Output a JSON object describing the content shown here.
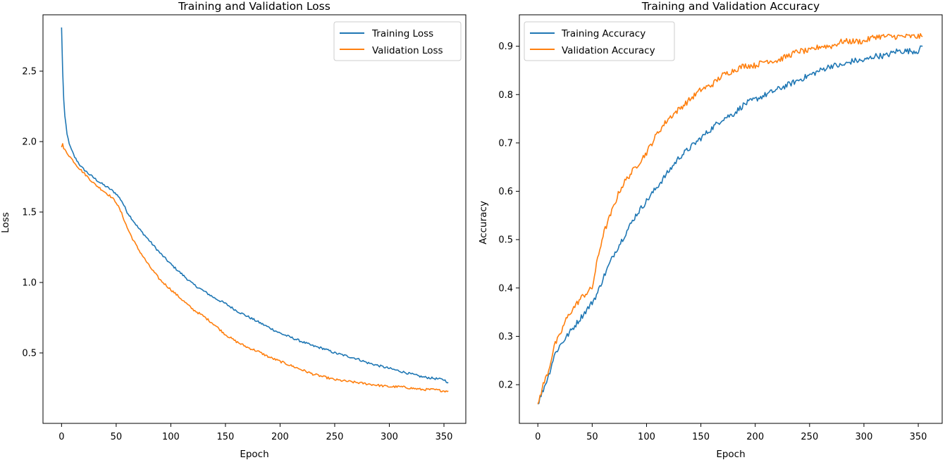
{
  "chart_data": [
    {
      "type": "line",
      "title": "Training and Validation Loss",
      "xlabel": "Epoch",
      "ylabel": "Loss",
      "xlim": [
        -17,
        370
      ],
      "ylim": [
        0.0,
        2.9
      ],
      "xticks": [
        0,
        50,
        100,
        150,
        200,
        250,
        300,
        350
      ],
      "yticks": [
        0.5,
        1.0,
        1.5,
        2.0,
        2.5
      ],
      "xtick_labels": [
        "0",
        "50",
        "100",
        "150",
        "200",
        "250",
        "300",
        "350"
      ],
      "ytick_labels": [
        "0.5",
        "1.0",
        "1.5",
        "2.0",
        "2.5"
      ],
      "legend_position": "top-right",
      "noise": 0.008,
      "series": [
        {
          "name": "Training Loss",
          "color": "#1f77b4",
          "anchors": [
            [
              0,
              2.81
            ],
            [
              1,
              2.5
            ],
            [
              2,
              2.3
            ],
            [
              3,
              2.18
            ],
            [
              5,
              2.05
            ],
            [
              8,
              1.96
            ],
            [
              12,
              1.89
            ],
            [
              18,
              1.82
            ],
            [
              25,
              1.77
            ],
            [
              35,
              1.71
            ],
            [
              45,
              1.66
            ],
            [
              50,
              1.63
            ],
            [
              55,
              1.58
            ],
            [
              60,
              1.5
            ],
            [
              70,
              1.39
            ],
            [
              80,
              1.3
            ],
            [
              90,
              1.21
            ],
            [
              100,
              1.13
            ],
            [
              110,
              1.06
            ],
            [
              120,
              0.99
            ],
            [
              130,
              0.94
            ],
            [
              140,
              0.89
            ],
            [
              150,
              0.85
            ],
            [
              160,
              0.8
            ],
            [
              170,
              0.76
            ],
            [
              180,
              0.72
            ],
            [
              190,
              0.68
            ],
            [
              200,
              0.64
            ],
            [
              210,
              0.61
            ],
            [
              220,
              0.58
            ],
            [
              230,
              0.55
            ],
            [
              240,
              0.53
            ],
            [
              250,
              0.5
            ],
            [
              260,
              0.48
            ],
            [
              270,
              0.46
            ],
            [
              280,
              0.43
            ],
            [
              290,
              0.41
            ],
            [
              300,
              0.39
            ],
            [
              310,
              0.37
            ],
            [
              320,
              0.35
            ],
            [
              330,
              0.33
            ],
            [
              340,
              0.32
            ],
            [
              350,
              0.31
            ],
            [
              354,
              0.29
            ]
          ]
        },
        {
          "name": "Validation Loss",
          "color": "#ff7f0e",
          "anchors": [
            [
              0,
              1.96
            ],
            [
              1,
              1.98
            ],
            [
              2,
              1.95
            ],
            [
              5,
              1.92
            ],
            [
              10,
              1.87
            ],
            [
              15,
              1.82
            ],
            [
              20,
              1.78
            ],
            [
              25,
              1.74
            ],
            [
              30,
              1.7
            ],
            [
              35,
              1.67
            ],
            [
              40,
              1.64
            ],
            [
              45,
              1.61
            ],
            [
              50,
              1.57
            ],
            [
              55,
              1.49
            ],
            [
              60,
              1.39
            ],
            [
              65,
              1.31
            ],
            [
              70,
              1.24
            ],
            [
              80,
              1.12
            ],
            [
              90,
              1.02
            ],
            [
              100,
              0.95
            ],
            [
              110,
              0.88
            ],
            [
              120,
              0.81
            ],
            [
              130,
              0.76
            ],
            [
              140,
              0.7
            ],
            [
              150,
              0.63
            ],
            [
              160,
              0.58
            ],
            [
              170,
              0.54
            ],
            [
              180,
              0.51
            ],
            [
              190,
              0.47
            ],
            [
              200,
              0.44
            ],
            [
              210,
              0.41
            ],
            [
              220,
              0.38
            ],
            [
              230,
              0.35
            ],
            [
              240,
              0.33
            ],
            [
              250,
              0.31
            ],
            [
              260,
              0.3
            ],
            [
              270,
              0.29
            ],
            [
              280,
              0.28
            ],
            [
              290,
              0.27
            ],
            [
              300,
              0.26
            ],
            [
              310,
              0.26
            ],
            [
              320,
              0.25
            ],
            [
              330,
              0.24
            ],
            [
              340,
              0.24
            ],
            [
              350,
              0.23
            ],
            [
              354,
              0.23
            ]
          ]
        }
      ]
    },
    {
      "type": "line",
      "title": "Training and Validation Accuracy",
      "xlabel": "Epoch",
      "ylabel": "Accuracy",
      "xlim": [
        -17,
        372
      ],
      "ylim": [
        0.12,
        0.965
      ],
      "xticks": [
        0,
        50,
        100,
        150,
        200,
        250,
        300,
        350
      ],
      "yticks": [
        0.2,
        0.3,
        0.4,
        0.5,
        0.6,
        0.7,
        0.8,
        0.9
      ],
      "xtick_labels": [
        "0",
        "50",
        "100",
        "150",
        "200",
        "250",
        "300",
        "350"
      ],
      "ytick_labels": [
        "0.2",
        "0.3",
        "0.4",
        "0.5",
        "0.6",
        "0.7",
        "0.8",
        "0.9"
      ],
      "legend_position": "top-left",
      "noise": 0.006,
      "series": [
        {
          "name": "Training Accuracy",
          "color": "#1f77b4",
          "anchors": [
            [
              0,
              0.16
            ],
            [
              5,
              0.19
            ],
            [
              10,
              0.22
            ],
            [
              15,
              0.26
            ],
            [
              20,
              0.28
            ],
            [
              30,
              0.31
            ],
            [
              40,
              0.34
            ],
            [
              50,
              0.37
            ],
            [
              55,
              0.39
            ],
            [
              60,
              0.42
            ],
            [
              70,
              0.47
            ],
            [
              80,
              0.51
            ],
            [
              90,
              0.55
            ],
            [
              100,
              0.58
            ],
            [
              110,
              0.61
            ],
            [
              120,
              0.64
            ],
            [
              130,
              0.67
            ],
            [
              140,
              0.69
            ],
            [
              150,
              0.71
            ],
            [
              160,
              0.73
            ],
            [
              170,
              0.75
            ],
            [
              180,
              0.76
            ],
            [
              190,
              0.78
            ],
            [
              200,
              0.79
            ],
            [
              210,
              0.8
            ],
            [
              220,
              0.81
            ],
            [
              230,
              0.82
            ],
            [
              240,
              0.83
            ],
            [
              250,
              0.84
            ],
            [
              260,
              0.85
            ],
            [
              270,
              0.86
            ],
            [
              280,
              0.86
            ],
            [
              290,
              0.87
            ],
            [
              300,
              0.87
            ],
            [
              310,
              0.88
            ],
            [
              320,
              0.88
            ],
            [
              330,
              0.89
            ],
            [
              340,
              0.89
            ],
            [
              350,
              0.89
            ],
            [
              354,
              0.9
            ]
          ]
        },
        {
          "name": "Validation Accuracy",
          "color": "#ff7f0e",
          "anchors": [
            [
              0,
              0.16
            ],
            [
              5,
              0.2
            ],
            [
              10,
              0.23
            ],
            [
              15,
              0.28
            ],
            [
              20,
              0.3
            ],
            [
              25,
              0.33
            ],
            [
              30,
              0.35
            ],
            [
              40,
              0.38
            ],
            [
              50,
              0.4
            ],
            [
              55,
              0.46
            ],
            [
              60,
              0.51
            ],
            [
              65,
              0.54
            ],
            [
              70,
              0.57
            ],
            [
              75,
              0.6
            ],
            [
              80,
              0.62
            ],
            [
              90,
              0.65
            ],
            [
              100,
              0.68
            ],
            [
              110,
              0.72
            ],
            [
              120,
              0.75
            ],
            [
              130,
              0.77
            ],
            [
              140,
              0.79
            ],
            [
              150,
              0.81
            ],
            [
              160,
              0.82
            ],
            [
              170,
              0.84
            ],
            [
              180,
              0.85
            ],
            [
              190,
              0.86
            ],
            [
              200,
              0.86
            ],
            [
              210,
              0.87
            ],
            [
              220,
              0.87
            ],
            [
              230,
              0.88
            ],
            [
              240,
              0.89
            ],
            [
              250,
              0.89
            ],
            [
              260,
              0.9
            ],
            [
              270,
              0.9
            ],
            [
              280,
              0.91
            ],
            [
              290,
              0.91
            ],
            [
              300,
              0.91
            ],
            [
              310,
              0.92
            ],
            [
              320,
              0.92
            ],
            [
              330,
              0.92
            ],
            [
              340,
              0.92
            ],
            [
              350,
              0.92
            ],
            [
              354,
              0.92
            ]
          ]
        }
      ]
    }
  ]
}
